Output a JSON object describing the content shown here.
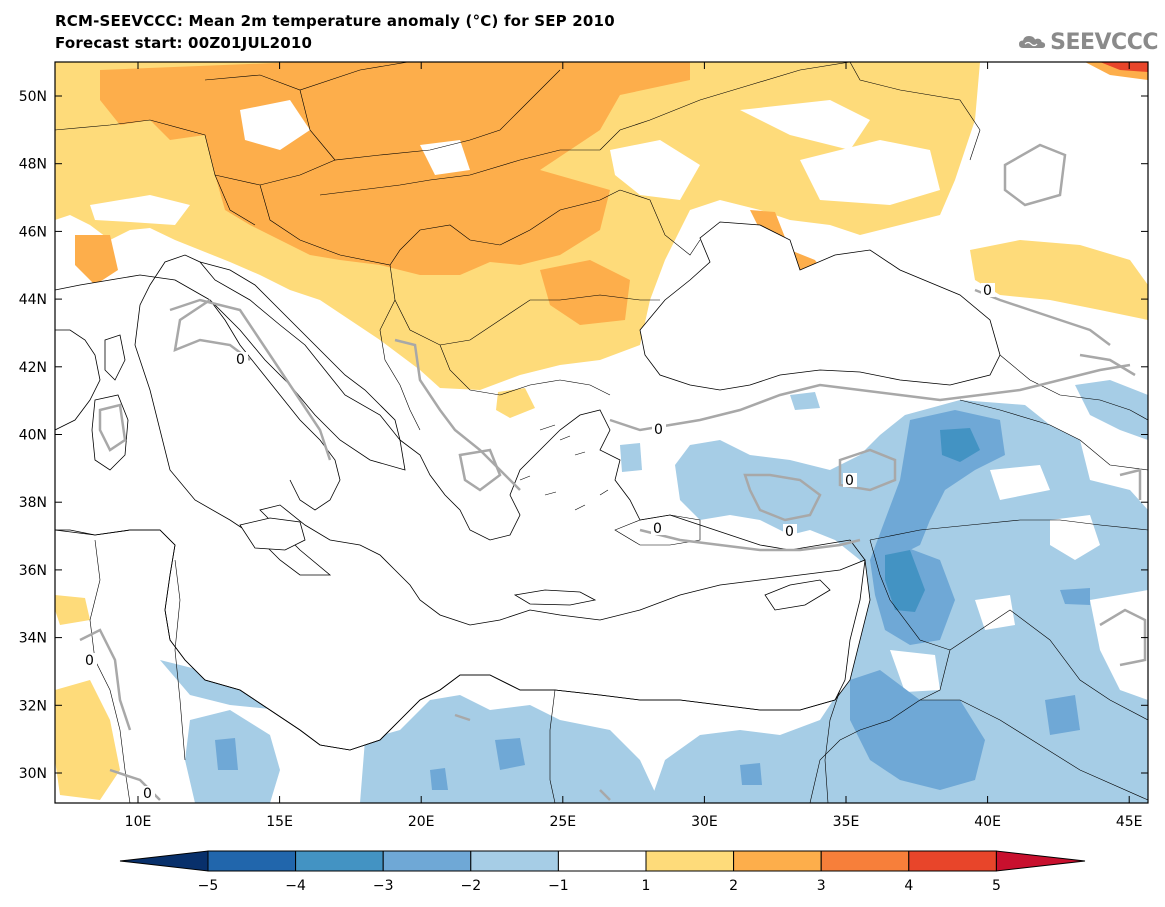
{
  "title": "RCM-SEEVCCC: Mean 2m temperature anomaly (°C) for SEP 2010",
  "subtitle": "Forecast start: 00Z01JUL2010",
  "logo": {
    "text": "SEEVCCC",
    "icon": "cloud-icon"
  },
  "axes": {
    "lat_labels": [
      "50N",
      "48N",
      "46N",
      "44N",
      "42N",
      "40N",
      "38N",
      "36N",
      "34N",
      "32N",
      "30N"
    ],
    "lon_labels": [
      "10E",
      "15E",
      "20E",
      "25E",
      "30E",
      "35E",
      "40E",
      "45E"
    ]
  },
  "contour_label": "0",
  "colorbar": {
    "ticks": [
      "−5",
      "−4",
      "−3",
      "−2",
      "−1",
      "1",
      "2",
      "3",
      "4",
      "5"
    ],
    "colors": [
      "#08306b",
      "#2166ac",
      "#4393c3",
      "#6fa8d6",
      "#a6cde6",
      "#ffffff",
      "#fedb7a",
      "#fdae4b",
      "#f77f3a",
      "#e8452a",
      "#c8102e"
    ]
  }
}
